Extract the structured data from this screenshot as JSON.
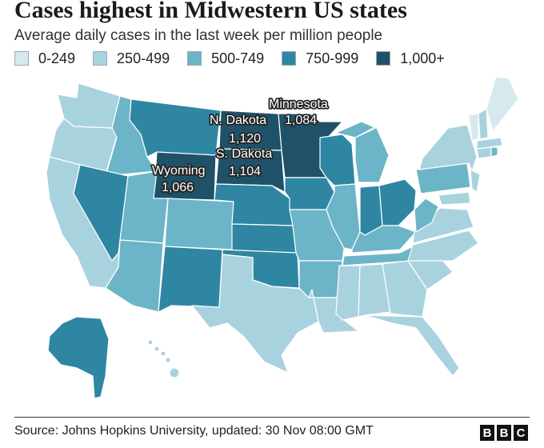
{
  "title": "Cases highest in Midwestern US states",
  "subtitle": "Average daily cases in the last week per million people",
  "legend": [
    {
      "label": "0-249",
      "color": "#d6e9ee"
    },
    {
      "label": "250-499",
      "color": "#a9d2df"
    },
    {
      "label": "500-749",
      "color": "#6cb4c8"
    },
    {
      "label": "750-999",
      "color": "#2e86a3"
    },
    {
      "label": "1,000+",
      "color": "#1f5268"
    }
  ],
  "map_data": {
    "states": [
      {
        "name": "Minnesota",
        "bucket": "1,000+",
        "value": "1,084"
      },
      {
        "name": "N. Dakota",
        "bucket": "1,000+",
        "value": "1,120"
      },
      {
        "name": "S. Dakota",
        "bucket": "1,000+",
        "value": "1,104"
      },
      {
        "name": "Wyoming",
        "bucket": "1,000+",
        "value": "1,066"
      }
    ]
  },
  "labels": {
    "minnesota": "Minnesota",
    "minnesota_val": "1,084",
    "ndakota": "N. Dakota",
    "ndakota_val": "1,120",
    "sdakota": "S. Dakota",
    "sdakota_val": "1,104",
    "wyoming": "Wyoming",
    "wyoming_val": "1,066"
  },
  "footer": {
    "source": "Source: Johns Hopkins University, updated: 30 Nov 08:00 GMT",
    "logo": [
      "B",
      "B",
      "C"
    ]
  }
}
